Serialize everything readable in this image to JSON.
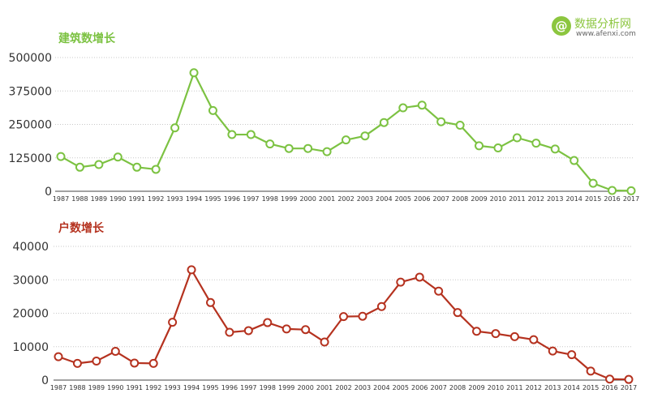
{
  "logo": {
    "name": "数据分析网",
    "url": "www.afenxi.com",
    "badge": "@"
  },
  "chart_data": [
    {
      "type": "line",
      "title": "建筑数增长",
      "xlabel": "",
      "ylabel": "",
      "x": [
        "1987",
        "1988",
        "1989",
        "1990",
        "1991",
        "1992",
        "1993",
        "1994",
        "1995",
        "1996",
        "1997",
        "1998",
        "1999",
        "2000",
        "2001",
        "2002",
        "2003",
        "2004",
        "2005",
        "2006",
        "2007",
        "2008",
        "2009",
        "2010",
        "2011",
        "2012",
        "2013",
        "2014",
        "2015",
        "2016",
        "2017"
      ],
      "series": [
        {
          "values": [
            130000,
            90000,
            100000,
            128000,
            90000,
            82000,
            237000,
            443000,
            302000,
            212000,
            212000,
            177000,
            160000,
            160000,
            148000,
            192000,
            207000,
            257000,
            312000,
            322000,
            260000,
            247000,
            170000,
            162000,
            200000,
            180000,
            158000,
            115000,
            30000,
            3000,
            2000
          ]
        }
      ],
      "yticks": [
        0,
        125000,
        250000,
        375000,
        500000
      ],
      "ylim": [
        0,
        500000
      ],
      "grid": true,
      "color": "#7cc242"
    },
    {
      "type": "line",
      "title": "户数增长",
      "xlabel": "",
      "ylabel": "",
      "x": [
        "1987",
        "1988",
        "1989",
        "1990",
        "1991",
        "1992",
        "1993",
        "1994",
        "1995",
        "1996",
        "1997",
        "1998",
        "1999",
        "2000",
        "2001",
        "2002",
        "2003",
        "2004",
        "2005",
        "2006",
        "2007",
        "2008",
        "2009",
        "2010",
        "2011",
        "2012",
        "2013",
        "2014",
        "2015",
        "2016",
        "2017"
      ],
      "series": [
        {
          "values": [
            7000,
            5000,
            5700,
            8600,
            5100,
            5000,
            17300,
            33000,
            23200,
            14300,
            14800,
            17200,
            15300,
            15100,
            11400,
            19000,
            19100,
            22000,
            29300,
            30800,
            26600,
            20200,
            14600,
            13900,
            13000,
            12100,
            8700,
            7600,
            2700,
            300,
            200
          ]
        }
      ],
      "yticks": [
        0,
        10000,
        20000,
        30000,
        40000
      ],
      "ylim": [
        0,
        40000
      ],
      "grid": true,
      "color": "#b5321f"
    }
  ]
}
